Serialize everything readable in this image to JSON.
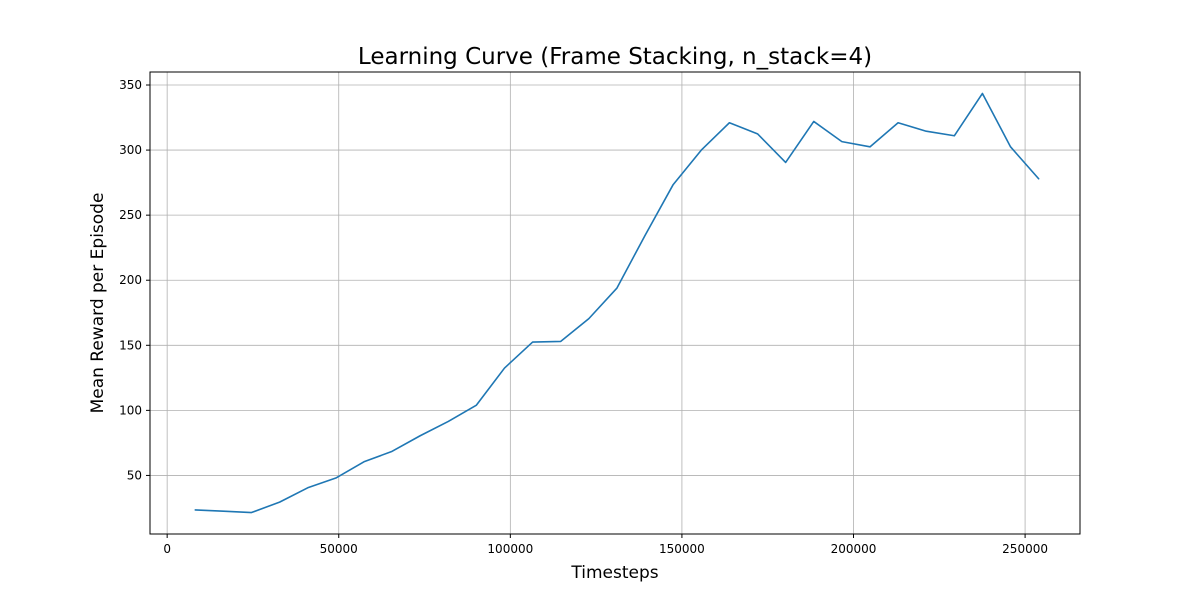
{
  "chart_data": {
    "type": "line",
    "title": "Learning Curve (Frame Stacking, n_stack=4)",
    "xlabel": "Timesteps",
    "ylabel": "Mean Reward per Episode",
    "xlim": [
      -5000,
      266000
    ],
    "ylim": [
      5,
      360
    ],
    "xticks": [
      0,
      50000,
      100000,
      150000,
      200000,
      250000
    ],
    "yticks": [
      50,
      100,
      150,
      200,
      250,
      300,
      350
    ],
    "grid": true,
    "series": [
      {
        "color": "#1f77b4",
        "x": [
          8192,
          16384,
          24576,
          32768,
          40960,
          49152,
          57344,
          65536,
          73728,
          81920,
          90112,
          98304,
          106496,
          114688,
          122880,
          131072,
          139264,
          147456,
          155648,
          163840,
          172032,
          180224,
          188416,
          196608,
          204800,
          212992,
          221184,
          229376,
          237568,
          245760,
          253952
        ],
        "y": [
          23.5,
          22.5,
          21.5,
          29.5,
          40.5,
          48,
          60.5,
          68.5,
          80.5,
          91.5,
          104,
          132.5,
          152.5,
          153,
          170.5,
          194,
          234.5,
          273.5,
          300,
          321,
          312.5,
          290.5,
          322,
          306.5,
          302.5,
          321,
          314.5,
          311,
          343.5,
          302.5,
          278
        ]
      }
    ]
  }
}
